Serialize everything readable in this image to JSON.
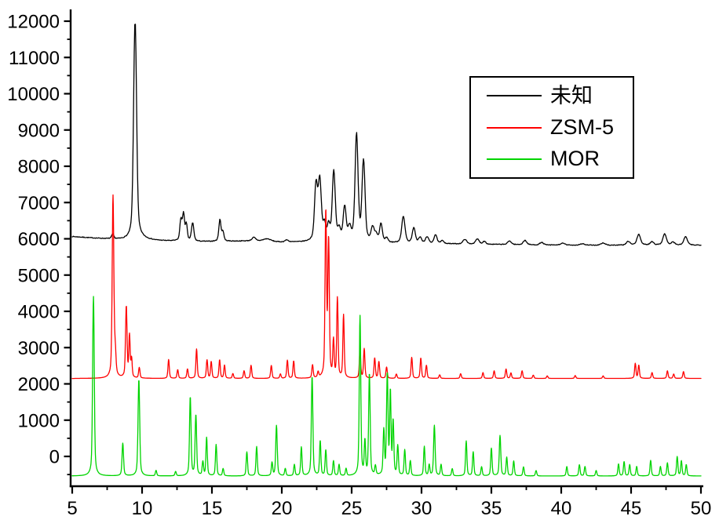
{
  "chart_data": {
    "type": "line",
    "title": "",
    "xlabel": "",
    "ylabel": "",
    "xlim": [
      5,
      50
    ],
    "ylim": [
      -800,
      12200
    ],
    "grid": false,
    "legend_position": "upper-right",
    "x_ticks_major": [
      5,
      10,
      15,
      20,
      25,
      30,
      35,
      40,
      45,
      50
    ],
    "x_tick_minor_step": 2.5,
    "y_ticks_major": [
      0,
      1000,
      2000,
      3000,
      4000,
      5000,
      6000,
      7000,
      8000,
      9000,
      10000,
      11000,
      12000
    ],
    "y_tick_minor_step": 500,
    "axis_color": "#000000",
    "series": [
      {
        "key": "unknown",
        "name": "未知",
        "color": "#000000",
        "noise": 10,
        "sigma": 0.1,
        "baseline_points": [
          [
            5,
            6060
          ],
          [
            6.5,
            6020
          ],
          [
            8,
            5985
          ],
          [
            9.2,
            5950
          ],
          [
            10,
            5985
          ],
          [
            11,
            5950
          ],
          [
            12.5,
            5930
          ],
          [
            14,
            5920
          ],
          [
            16,
            5930
          ],
          [
            18,
            5945
          ],
          [
            20,
            5905
          ],
          [
            22,
            5900
          ],
          [
            24,
            5890
          ],
          [
            26,
            5880
          ],
          [
            28,
            5875
          ],
          [
            30,
            5870
          ],
          [
            32,
            5860
          ],
          [
            34,
            5850
          ],
          [
            36,
            5840
          ],
          [
            38,
            5830
          ],
          [
            40,
            5825
          ],
          [
            43,
            5820
          ],
          [
            46,
            5825
          ],
          [
            48,
            5820
          ],
          [
            50,
            5825
          ]
        ],
        "peaks": [
          [
            7.9,
            130,
            0.07
          ],
          [
            9.5,
            6060,
            0.1
          ],
          [
            12.78,
            570,
            0.07
          ],
          [
            12.97,
            720,
            0.07
          ],
          [
            13.17,
            430,
            0.06
          ],
          [
            13.62,
            500,
            0.08
          ],
          [
            15.57,
            590,
            0.07
          ],
          [
            15.78,
            260,
            0.07
          ],
          [
            18.0,
            90,
            0.12
          ],
          [
            18.95,
            70,
            0.25
          ],
          [
            20.35,
            55,
            0.12
          ],
          [
            22.45,
            1530
          ],
          [
            22.72,
            1640
          ],
          [
            23.05,
            430,
            0.09
          ],
          [
            23.35,
            400,
            0.09
          ],
          [
            23.72,
            1930
          ],
          [
            24.1,
            300
          ],
          [
            24.5,
            920
          ],
          [
            24.85,
            350
          ],
          [
            25.35,
            2950
          ],
          [
            25.85,
            2200
          ],
          [
            26.5,
            380
          ],
          [
            26.75,
            200
          ],
          [
            27.1,
            510,
            0.09
          ],
          [
            27.5,
            120
          ],
          [
            28.7,
            730,
            0.11
          ],
          [
            29.45,
            410
          ],
          [
            29.9,
            150
          ],
          [
            30.4,
            180
          ],
          [
            31.0,
            240
          ],
          [
            31.5,
            80
          ],
          [
            33.1,
            130,
            0.12
          ],
          [
            34.0,
            140,
            0.12
          ],
          [
            34.5,
            80
          ],
          [
            36.3,
            100,
            0.12
          ],
          [
            37.4,
            120,
            0.12
          ],
          [
            38.6,
            70,
            0.12
          ],
          [
            40.1,
            50,
            0.15
          ],
          [
            41.5,
            40,
            0.15
          ],
          [
            43.0,
            60,
            0.15
          ],
          [
            44.8,
            100,
            0.12
          ],
          [
            45.55,
            290,
            0.12
          ],
          [
            46.5,
            90,
            0.12
          ],
          [
            47.4,
            310,
            0.12
          ],
          [
            48.0,
            80,
            0.12
          ],
          [
            48.9,
            230,
            0.12
          ]
        ]
      },
      {
        "key": "zsm5",
        "name": "ZSM-5",
        "color": "#ff0000",
        "noise": 0,
        "sigma": 0.045,
        "baseline": 2150,
        "peaks": [
          [
            7.92,
            5010,
            0.055
          ],
          [
            8.08,
            600,
            0.05
          ],
          [
            8.87,
            1960,
            0.05
          ],
          [
            9.1,
            1140
          ],
          [
            9.25,
            500,
            0.04
          ],
          [
            9.8,
            290
          ],
          [
            11.9,
            520
          ],
          [
            12.55,
            240
          ],
          [
            13.25,
            260
          ],
          [
            13.9,
            810
          ],
          [
            14.65,
            510
          ],
          [
            14.95,
            460
          ],
          [
            15.55,
            510
          ],
          [
            15.9,
            360
          ],
          [
            16.5,
            130
          ],
          [
            17.3,
            210
          ],
          [
            17.8,
            360
          ],
          [
            19.25,
            360
          ],
          [
            19.9,
            120
          ],
          [
            20.4,
            500
          ],
          [
            20.85,
            480
          ],
          [
            22.2,
            360
          ],
          [
            22.6,
            150
          ],
          [
            23.15,
            4520,
            0.05
          ],
          [
            23.35,
            3720,
            0.05
          ],
          [
            23.7,
            990
          ],
          [
            23.98,
            2180
          ],
          [
            24.42,
            1730
          ],
          [
            25.6,
            760
          ],
          [
            25.9,
            810
          ],
          [
            26.65,
            560
          ],
          [
            26.95,
            460
          ],
          [
            27.5,
            310
          ],
          [
            28.2,
            120
          ],
          [
            29.3,
            580
          ],
          [
            29.95,
            560
          ],
          [
            30.35,
            360
          ],
          [
            31.3,
            100
          ],
          [
            32.8,
            130
          ],
          [
            34.4,
            160
          ],
          [
            35.2,
            210
          ],
          [
            36.05,
            260
          ],
          [
            36.4,
            150
          ],
          [
            37.2,
            210
          ],
          [
            38.0,
            90
          ],
          [
            39.0,
            70
          ],
          [
            41.0,
            80
          ],
          [
            43.0,
            70
          ],
          [
            45.3,
            410
          ],
          [
            45.55,
            360
          ],
          [
            46.5,
            160
          ],
          [
            47.6,
            210
          ],
          [
            48.05,
            120
          ],
          [
            48.75,
            190
          ]
        ]
      },
      {
        "key": "mor",
        "name": "MOR",
        "color": "#00d400",
        "noise": 0,
        "sigma": 0.045,
        "baseline": -540,
        "peaks": [
          [
            6.52,
            4950,
            0.055
          ],
          [
            8.62,
            900,
            0.05
          ],
          [
            9.77,
            2660,
            0.055
          ],
          [
            11.0,
            150
          ],
          [
            12.4,
            120
          ],
          [
            13.45,
            2170,
            0.05
          ],
          [
            13.85,
            1670,
            0.05
          ],
          [
            14.35,
            380
          ],
          [
            14.62,
            1050
          ],
          [
            15.3,
            860
          ],
          [
            15.8,
            200
          ],
          [
            17.5,
            660
          ],
          [
            18.2,
            810
          ],
          [
            19.3,
            360
          ],
          [
            19.62,
            1390,
            0.05
          ],
          [
            20.25,
            200
          ],
          [
            20.9,
            310
          ],
          [
            21.4,
            790
          ],
          [
            22.17,
            2750,
            0.05
          ],
          [
            22.75,
            960
          ],
          [
            23.15,
            710
          ],
          [
            23.7,
            410
          ],
          [
            24.1,
            310
          ],
          [
            24.6,
            200
          ],
          [
            25.6,
            4400,
            0.05
          ],
          [
            25.95,
            910
          ],
          [
            26.27,
            2800,
            0.05
          ],
          [
            26.7,
            250
          ],
          [
            27.3,
            1210
          ],
          [
            27.55,
            2750,
            0.05
          ],
          [
            27.77,
            2250
          ],
          [
            27.97,
            1450
          ],
          [
            28.3,
            810
          ],
          [
            28.8,
            710
          ],
          [
            29.2,
            410
          ],
          [
            30.2,
            810
          ],
          [
            30.55,
            300
          ],
          [
            30.92,
            1390,
            0.05
          ],
          [
            31.4,
            310
          ],
          [
            32.2,
            200
          ],
          [
            33.2,
            960
          ],
          [
            33.7,
            660
          ],
          [
            34.3,
            250
          ],
          [
            35.0,
            760
          ],
          [
            35.62,
            1110,
            0.05
          ],
          [
            36.1,
            510
          ],
          [
            36.6,
            410
          ],
          [
            37.3,
            250
          ],
          [
            38.2,
            150
          ],
          [
            40.4,
            260
          ],
          [
            41.3,
            310
          ],
          [
            41.7,
            260
          ],
          [
            42.5,
            150
          ],
          [
            44.1,
            330
          ],
          [
            44.5,
            390
          ],
          [
            44.9,
            310
          ],
          [
            45.4,
            260
          ],
          [
            46.4,
            430
          ],
          [
            47.1,
            260
          ],
          [
            47.6,
            360
          ],
          [
            48.3,
            530
          ],
          [
            48.6,
            410
          ],
          [
            48.95,
            310
          ]
        ]
      }
    ]
  }
}
